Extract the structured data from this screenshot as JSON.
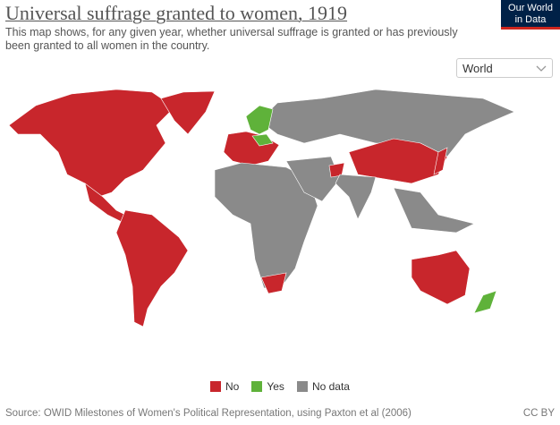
{
  "header": {
    "title": "Universal suffrage granted to women, 1919",
    "subtitle": "This map shows, for any given year, whether universal suffrage is granted or has previously been granted to all women in the country.",
    "logo": [
      "Our World",
      "in Data"
    ]
  },
  "controls": {
    "region": "World"
  },
  "legend": [
    {
      "label": "No",
      "color": "#c8262c"
    },
    {
      "label": "Yes",
      "color": "#5fb23a"
    },
    {
      "label": "No data",
      "color": "#8a8a8a"
    }
  ],
  "footer": {
    "source": "Source: OWID Milestones of Women's Political Representation, using Paxton et al (2006)",
    "license": "CC BY"
  }
}
